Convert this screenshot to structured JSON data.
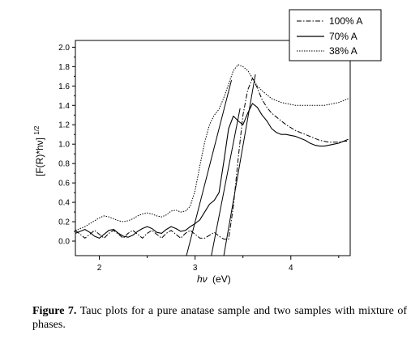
{
  "chart_data": {
    "type": "line",
    "title": "",
    "xlabel_symbol": "hν",
    "xlabel_unit": "(eV)",
    "ylabel": "[F(R)*hν]",
    "ylabel_superscript": "1/2",
    "xlim": [
      1.75,
      4.62
    ],
    "ylim": [
      -0.15,
      2.07
    ],
    "x_ticks": [
      2,
      3,
      4
    ],
    "y_ticks": [
      0.0,
      0.2,
      0.4,
      0.6,
      0.8,
      1.0,
      1.2,
      1.4,
      1.6,
      1.8,
      2.0
    ],
    "legend_position": "top-right",
    "series": [
      {
        "name": "100% A",
        "dash": "dashdot",
        "x": [
          1.75,
          1.8,
          1.85,
          1.9,
          1.95,
          2.0,
          2.05,
          2.1,
          2.15,
          2.2,
          2.25,
          2.3,
          2.35,
          2.4,
          2.45,
          2.5,
          2.55,
          2.6,
          2.65,
          2.7,
          2.75,
          2.8,
          2.85,
          2.9,
          2.95,
          3.0,
          3.05,
          3.1,
          3.15,
          3.2,
          3.25,
          3.3,
          3.35,
          3.4,
          3.45,
          3.5,
          3.55,
          3.6,
          3.65,
          3.7,
          3.75,
          3.8,
          3.85,
          3.9,
          3.95,
          4.0,
          4.05,
          4.1,
          4.15,
          4.2,
          4.25,
          4.3,
          4.35,
          4.4,
          4.45,
          4.5,
          4.55,
          4.6
        ],
        "y": [
          0.11,
          0.07,
          0.03,
          0.07,
          0.11,
          0.07,
          0.03,
          0.08,
          0.11,
          0.07,
          0.03,
          0.08,
          0.11,
          0.07,
          0.03,
          0.08,
          0.11,
          0.07,
          0.03,
          0.08,
          0.11,
          0.07,
          0.03,
          0.08,
          0.11,
          0.07,
          0.03,
          0.03,
          0.06,
          0.09,
          0.05,
          0.02,
          0.02,
          0.36,
          0.85,
          1.3,
          1.56,
          1.68,
          1.58,
          1.46,
          1.38,
          1.32,
          1.28,
          1.24,
          1.2,
          1.17,
          1.14,
          1.12,
          1.1,
          1.08,
          1.06,
          1.04,
          1.03,
          1.02,
          1.02,
          1.02,
          1.03,
          1.03
        ]
      },
      {
        "name": "70% A",
        "dash": "solid",
        "x": [
          1.75,
          1.8,
          1.85,
          1.9,
          1.95,
          2.0,
          2.05,
          2.1,
          2.15,
          2.2,
          2.25,
          2.3,
          2.35,
          2.4,
          2.45,
          2.5,
          2.55,
          2.6,
          2.65,
          2.7,
          2.75,
          2.8,
          2.85,
          2.9,
          2.95,
          3.0,
          3.05,
          3.1,
          3.15,
          3.2,
          3.25,
          3.3,
          3.35,
          3.4,
          3.45,
          3.5,
          3.55,
          3.6,
          3.65,
          3.7,
          3.75,
          3.8,
          3.85,
          3.9,
          3.95,
          4.0,
          4.05,
          4.1,
          4.15,
          4.2,
          4.25,
          4.3,
          4.35,
          4.4,
          4.45,
          4.5,
          4.55,
          4.6
        ],
        "y": [
          0.08,
          0.1,
          0.12,
          0.09,
          0.05,
          0.03,
          0.07,
          0.11,
          0.12,
          0.08,
          0.05,
          0.04,
          0.06,
          0.1,
          0.13,
          0.15,
          0.13,
          0.09,
          0.08,
          0.12,
          0.15,
          0.13,
          0.1,
          0.11,
          0.15,
          0.18,
          0.22,
          0.3,
          0.38,
          0.42,
          0.5,
          0.82,
          1.16,
          1.29,
          1.24,
          1.2,
          1.32,
          1.42,
          1.38,
          1.3,
          1.24,
          1.16,
          1.12,
          1.1,
          1.1,
          1.09,
          1.08,
          1.06,
          1.04,
          1.01,
          0.99,
          0.98,
          0.98,
          0.99,
          1.0,
          1.01,
          1.03,
          1.05
        ]
      },
      {
        "name": "38% A",
        "dash": "dotted",
        "x": [
          1.75,
          1.8,
          1.85,
          1.9,
          1.95,
          2.0,
          2.05,
          2.1,
          2.15,
          2.2,
          2.25,
          2.3,
          2.35,
          2.4,
          2.45,
          2.5,
          2.55,
          2.6,
          2.65,
          2.7,
          2.75,
          2.8,
          2.85,
          2.9,
          2.95,
          3.0,
          3.05,
          3.1,
          3.15,
          3.2,
          3.25,
          3.3,
          3.35,
          3.4,
          3.45,
          3.5,
          3.55,
          3.6,
          3.65,
          3.7,
          3.75,
          3.8,
          3.85,
          3.9,
          3.95,
          4.0,
          4.05,
          4.1,
          4.15,
          4.2,
          4.25,
          4.3,
          4.35,
          4.4,
          4.45,
          4.5,
          4.55,
          4.6
        ],
        "y": [
          0.11,
          0.13,
          0.15,
          0.18,
          0.21,
          0.24,
          0.26,
          0.25,
          0.23,
          0.21,
          0.2,
          0.21,
          0.23,
          0.26,
          0.28,
          0.29,
          0.28,
          0.26,
          0.25,
          0.27,
          0.31,
          0.32,
          0.3,
          0.31,
          0.36,
          0.52,
          0.78,
          1.02,
          1.2,
          1.3,
          1.36,
          1.48,
          1.62,
          1.76,
          1.82,
          1.8,
          1.76,
          1.68,
          1.6,
          1.55,
          1.51,
          1.47,
          1.45,
          1.43,
          1.42,
          1.41,
          1.4,
          1.4,
          1.4,
          1.4,
          1.4,
          1.4,
          1.4,
          1.41,
          1.42,
          1.43,
          1.45,
          1.47
        ]
      }
    ],
    "tangent_lines": [
      {
        "x": [
          2.91,
          3.38
        ],
        "y": [
          -0.15,
          1.66
        ]
      },
      {
        "x": [
          3.17,
          3.47
        ],
        "y": [
          -0.15,
          1.37
        ]
      },
      {
        "x": [
          3.3,
          3.63
        ],
        "y": [
          -0.15,
          1.72
        ]
      }
    ]
  },
  "caption": {
    "label": "Figure 7.",
    "text": "Tauc plots for a pure anatase sample and two samples with mixture of phases."
  }
}
